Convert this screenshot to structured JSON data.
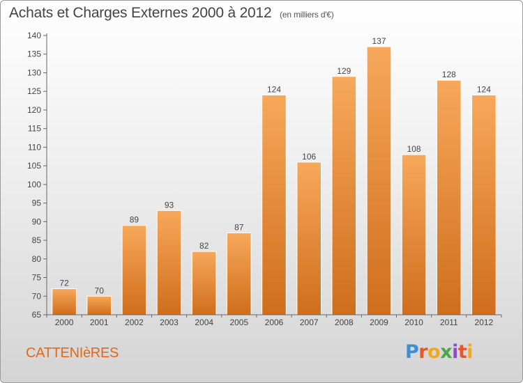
{
  "header": {
    "title": "Achats et Charges Externes 2000 à 2012",
    "subtitle": "(en milliers d'€)"
  },
  "footer": {
    "commune": "CATTENIèRES",
    "logo_letters": [
      "P",
      "r",
      "o",
      "x",
      "i",
      "t",
      "i"
    ],
    "logo_colors": [
      "#3b8fd4",
      "#e8562a",
      "#f2a81d",
      "#4aa84a",
      "#8a4fc0",
      "#e8562a",
      "#f2a81d"
    ]
  },
  "colors": {
    "bar_light": "#f7a85a",
    "bar_dark": "#cf6e1c",
    "axis": "#666666",
    "grid": "#bbbbbb",
    "commune_text": "#e0691b"
  },
  "chart_data": {
    "type": "bar",
    "categories": [
      "2000",
      "2001",
      "2002",
      "2003",
      "2004",
      "2005",
      "2006",
      "2007",
      "2008",
      "2009",
      "2010",
      "2011",
      "2012"
    ],
    "values": [
      72,
      70,
      89,
      93,
      82,
      87,
      124,
      106,
      129,
      137,
      108,
      128,
      124
    ],
    "ylim": [
      65,
      140
    ],
    "yticks": [
      65,
      70,
      75,
      80,
      85,
      90,
      95,
      100,
      105,
      110,
      115,
      120,
      125,
      130,
      135,
      140
    ],
    "grid": false,
    "data_labels": true
  }
}
